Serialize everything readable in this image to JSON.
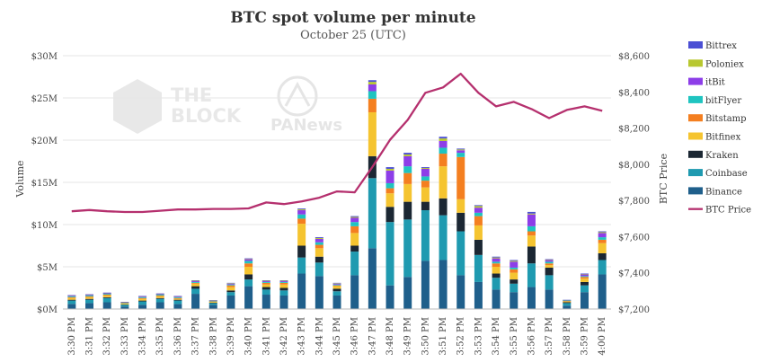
{
  "chart_data": {
    "type": "bar",
    "title": "BTC spot volume per minute",
    "subtitle": "October 25 (UTC)",
    "ylabel": "Volume",
    "y2label": "BTC Price",
    "ylim": [
      0,
      30000000
    ],
    "y2lim": [
      7200,
      8600
    ],
    "yticks": [
      "$0M",
      "$5M",
      "$10M",
      "$15M",
      "$20M",
      "$25M",
      "$30M"
    ],
    "y2ticks": [
      "$7,200",
      "$7,400",
      "$7,600",
      "$7,800",
      "$8,000",
      "$8,200",
      "$8,400",
      "$8,600"
    ],
    "categories": [
      "3:30 PM",
      "3:31 PM",
      "3:32 PM",
      "3:33 PM",
      "3:34 PM",
      "3:35 PM",
      "3:36 PM",
      "3:37 PM",
      "3:38 PM",
      "3:39 PM",
      "3:40 PM",
      "3:41 PM",
      "3:42 PM",
      "3:43 PM",
      "3:44 PM",
      "3:45 PM",
      "3:46 PM",
      "3:47 PM",
      "3:48 PM",
      "3:49 PM",
      "3:50 PM",
      "3:51 PM",
      "3:52 PM",
      "3:53 PM",
      "3:54 PM",
      "3:55 PM",
      "3:56 PM",
      "3:57 PM",
      "3:58 PM",
      "3:59 PM",
      "4:00 PM"
    ],
    "series": [
      {
        "name": "Binance",
        "color": "#1f5f8b",
        "values": [
          0.6,
          0.7,
          0.8,
          0.3,
          0.5,
          0.8,
          0.6,
          1.8,
          0.5,
          1.6,
          2.7,
          1.7,
          1.6,
          4.2,
          3.9,
          1.6,
          4.0,
          7.2,
          2.8,
          3.8,
          5.7,
          5.8,
          4.0,
          3.2,
          2.3,
          2.0,
          2.6,
          2.3,
          0.4,
          2.0,
          4.1
        ]
      },
      {
        "name": "Coinbase",
        "color": "#1f9ab0",
        "values": [
          0.4,
          0.4,
          0.5,
          0.2,
          0.4,
          0.4,
          0.4,
          0.6,
          0.2,
          0.4,
          0.8,
          0.6,
          0.6,
          1.9,
          1.6,
          0.5,
          2.8,
          8.3,
          7.5,
          6.8,
          6.0,
          5.3,
          5.2,
          3.2,
          1.4,
          1.0,
          2.8,
          1.7,
          0.3,
          0.8,
          1.7
        ]
      },
      {
        "name": "Kraken",
        "color": "#1b2733",
        "values": [
          0.1,
          0.1,
          0.1,
          0.05,
          0.1,
          0.1,
          0.1,
          0.3,
          0.05,
          0.2,
          0.6,
          0.3,
          0.3,
          1.4,
          0.7,
          0.3,
          0.7,
          2.6,
          1.8,
          2.1,
          1.0,
          2.0,
          2.2,
          1.8,
          0.5,
          0.5,
          2.0,
          0.9,
          0.1,
          0.4,
          0.8
        ]
      },
      {
        "name": "Bitfinex",
        "color": "#f5c430",
        "values": [
          0.2,
          0.2,
          0.2,
          0.1,
          0.2,
          0.2,
          0.1,
          0.3,
          0.1,
          0.4,
          0.9,
          0.3,
          0.4,
          2.6,
          1.0,
          0.3,
          1.5,
          5.2,
          1.6,
          2.1,
          1.7,
          3.8,
          1.6,
          1.7,
          0.8,
          0.8,
          1.3,
          0.3,
          0.1,
          0.4,
          1.2
        ]
      },
      {
        "name": "Bitstamp",
        "color": "#f47f20",
        "values": [
          0.1,
          0.1,
          0.1,
          0.05,
          0.1,
          0.1,
          0.1,
          0.1,
          0.05,
          0.2,
          0.4,
          0.2,
          0.2,
          0.6,
          0.4,
          0.1,
          0.8,
          1.6,
          0.6,
          1.3,
          0.8,
          1.5,
          5.0,
          1.1,
          0.4,
          0.4,
          0.5,
          0.2,
          0.05,
          0.2,
          0.4
        ]
      },
      {
        "name": "bitFlyer",
        "color": "#1fc4c0",
        "values": [
          0.1,
          0.1,
          0.1,
          0.05,
          0.1,
          0.1,
          0.1,
          0.1,
          0.05,
          0.1,
          0.3,
          0.1,
          0.1,
          0.5,
          0.3,
          0.1,
          0.5,
          0.9,
          0.6,
          0.8,
          0.5,
          0.7,
          0.5,
          0.4,
          0.2,
          0.2,
          0.6,
          0.2,
          0.05,
          0.1,
          0.3
        ]
      },
      {
        "name": "itBit",
        "color": "#8d3ee8",
        "values": [
          0.1,
          0.1,
          0.1,
          0.05,
          0.1,
          0.1,
          0.1,
          0.1,
          0.05,
          0.1,
          0.2,
          0.1,
          0.1,
          0.5,
          0.4,
          0.1,
          0.5,
          0.8,
          1.5,
          1.2,
          0.9,
          0.8,
          0.3,
          0.6,
          0.4,
          0.7,
          1.4,
          0.2,
          0.05,
          0.2,
          0.5
        ]
      },
      {
        "name": "Poloniex",
        "color": "#b8c830",
        "values": [
          0.02,
          0.02,
          0.02,
          0.02,
          0.02,
          0.02,
          0.02,
          0.05,
          0.02,
          0.05,
          0.05,
          0.05,
          0.05,
          0.1,
          0.1,
          0.05,
          0.1,
          0.3,
          0.2,
          0.2,
          0.1,
          0.3,
          0.1,
          0.2,
          0.1,
          0.1,
          0.1,
          0.05,
          0.02,
          0.05,
          0.1
        ]
      },
      {
        "name": "Bittrex",
        "color": "#4b4fd4",
        "values": [
          0.02,
          0.02,
          0.02,
          0.02,
          0.02,
          0.02,
          0.02,
          0.05,
          0.02,
          0.05,
          0.05,
          0.05,
          0.05,
          0.1,
          0.1,
          0.05,
          0.1,
          0.2,
          0.2,
          0.2,
          0.1,
          0.2,
          0.1,
          0.1,
          0.1,
          0.1,
          0.2,
          0.05,
          0.02,
          0.05,
          0.1
        ]
      }
    ],
    "values_unit": "$M",
    "line": {
      "name": "BTC Price",
      "color": "#b5306e",
      "values": [
        7740,
        7747,
        7740,
        7736,
        7736,
        7743,
        7750,
        7750,
        7753,
        7753,
        7756,
        7789,
        7780,
        7795,
        7815,
        7850,
        7845,
        7985,
        8135,
        8245,
        8395,
        8425,
        8500,
        8395,
        8320,
        8345,
        8305,
        8255,
        8300,
        8320,
        8295
      ]
    },
    "legend_position": "right",
    "grid": true
  },
  "watermarks": {
    "left": "THE BLOCK",
    "left_line1": "THE",
    "left_line2": "BLOCK",
    "right": "PANews"
  }
}
